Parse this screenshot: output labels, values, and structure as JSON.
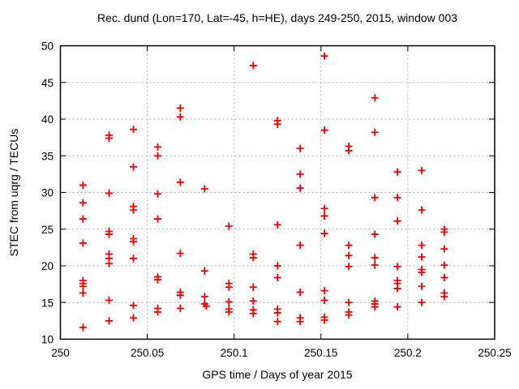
{
  "chart_data": {
    "type": "scatter",
    "title": "Rec. dund (Lon=170, Lat=-45, h=HE), days 249-250, 2015, window 003",
    "xlabel": "GPS time / Days of year 2015",
    "ylabel": "STEC from uqrg / TECUs",
    "xlim": [
      250,
      250.25
    ],
    "ylim": [
      10,
      50
    ],
    "xticks": [
      250,
      250.05,
      250.1,
      250.15,
      250.2,
      250.25
    ],
    "xtick_labels": [
      "250",
      "250.05",
      "250.1",
      "250.15",
      "250.2",
      "250.25"
    ],
    "yticks": [
      10,
      15,
      20,
      25,
      30,
      35,
      40,
      45,
      50
    ],
    "ytick_labels": [
      "10",
      "15",
      "20",
      "25",
      "30",
      "35",
      "40",
      "45",
      "50"
    ],
    "grid": true,
    "legend": "none",
    "marker": {
      "symbol": "plus",
      "color": "#ee0000",
      "size": 9
    },
    "grid_color": "#b0b0b0",
    "axis_color": "#000000",
    "background": "#ffffff",
    "points": [
      [
        250.013,
        31.0
      ],
      [
        250.013,
        28.6
      ],
      [
        250.013,
        26.4
      ],
      [
        250.013,
        23.1
      ],
      [
        250.013,
        18.0
      ],
      [
        250.013,
        17.6
      ],
      [
        250.013,
        17.2
      ],
      [
        250.013,
        16.3
      ],
      [
        250.013,
        11.6
      ],
      [
        250.028,
        37.8
      ],
      [
        250.028,
        37.4
      ],
      [
        250.028,
        29.9
      ],
      [
        250.028,
        24.7
      ],
      [
        250.028,
        24.3
      ],
      [
        250.028,
        21.6
      ],
      [
        250.028,
        21.0
      ],
      [
        250.028,
        20.3
      ],
      [
        250.028,
        15.3
      ],
      [
        250.028,
        12.5
      ],
      [
        250.042,
        38.6
      ],
      [
        250.042,
        33.5
      ],
      [
        250.042,
        28.1
      ],
      [
        250.042,
        27.6
      ],
      [
        250.042,
        23.7
      ],
      [
        250.042,
        23.3
      ],
      [
        250.042,
        21.0
      ],
      [
        250.042,
        14.6
      ],
      [
        250.042,
        12.9
      ],
      [
        250.056,
        36.2
      ],
      [
        250.056,
        35.0
      ],
      [
        250.056,
        29.8
      ],
      [
        250.056,
        26.4
      ],
      [
        250.056,
        18.5
      ],
      [
        250.056,
        18.1
      ],
      [
        250.056,
        14.2
      ],
      [
        250.056,
        13.7
      ],
      [
        250.069,
        41.5
      ],
      [
        250.069,
        40.3
      ],
      [
        250.069,
        31.4
      ],
      [
        250.069,
        21.7
      ],
      [
        250.069,
        16.4
      ],
      [
        250.069,
        16.0
      ],
      [
        250.069,
        14.2
      ],
      [
        250.083,
        30.5
      ],
      [
        250.083,
        19.3
      ],
      [
        250.083,
        15.8
      ],
      [
        250.083,
        14.8
      ],
      [
        250.084,
        14.5
      ],
      [
        250.097,
        25.4
      ],
      [
        250.097,
        17.6
      ],
      [
        250.097,
        17.1
      ],
      [
        250.097,
        15.1
      ],
      [
        250.097,
        14.1
      ],
      [
        250.097,
        13.7
      ],
      [
        250.111,
        47.3
      ],
      [
        250.111,
        21.6
      ],
      [
        250.111,
        21.1
      ],
      [
        250.111,
        17.1
      ],
      [
        250.111,
        15.2
      ],
      [
        250.111,
        14.0
      ],
      [
        250.111,
        13.5
      ],
      [
        250.125,
        39.8
      ],
      [
        250.125,
        39.3
      ],
      [
        250.125,
        25.6
      ],
      [
        250.125,
        20.0
      ],
      [
        250.125,
        18.4
      ],
      [
        250.125,
        14.1
      ],
      [
        250.125,
        13.6
      ],
      [
        250.125,
        12.4
      ],
      [
        250.138,
        36.0
      ],
      [
        250.138,
        32.5
      ],
      [
        250.138,
        30.6
      ],
      [
        250.138,
        22.8
      ],
      [
        250.138,
        16.4
      ],
      [
        250.138,
        12.9
      ],
      [
        250.138,
        12.4
      ],
      [
        250.152,
        48.6
      ],
      [
        250.152,
        38.5
      ],
      [
        250.152,
        27.8
      ],
      [
        250.152,
        26.8
      ],
      [
        250.152,
        24.4
      ],
      [
        250.152,
        16.6
      ],
      [
        250.152,
        15.3
      ],
      [
        250.152,
        13.0
      ],
      [
        250.152,
        12.6
      ],
      [
        250.166,
        36.3
      ],
      [
        250.166,
        35.7
      ],
      [
        250.166,
        22.8
      ],
      [
        250.166,
        21.4
      ],
      [
        250.166,
        19.9
      ],
      [
        250.166,
        15.0
      ],
      [
        250.166,
        13.7
      ],
      [
        250.166,
        13.3
      ],
      [
        250.181,
        42.9
      ],
      [
        250.181,
        38.2
      ],
      [
        250.181,
        29.3
      ],
      [
        250.181,
        24.3
      ],
      [
        250.181,
        21.1
      ],
      [
        250.181,
        20.1
      ],
      [
        250.181,
        15.2
      ],
      [
        250.181,
        14.8
      ],
      [
        250.181,
        14.4
      ],
      [
        250.194,
        32.8
      ],
      [
        250.194,
        29.3
      ],
      [
        250.194,
        26.1
      ],
      [
        250.194,
        19.9
      ],
      [
        250.194,
        18.0
      ],
      [
        250.194,
        17.6
      ],
      [
        250.194,
        16.9
      ],
      [
        250.194,
        14.4
      ],
      [
        250.208,
        33.0
      ],
      [
        250.208,
        27.6
      ],
      [
        250.208,
        22.8
      ],
      [
        250.208,
        21.2
      ],
      [
        250.208,
        19.5
      ],
      [
        250.208,
        19.1
      ],
      [
        250.208,
        17.2
      ],
      [
        250.208,
        15.0
      ],
      [
        250.221,
        25.0
      ],
      [
        250.221,
        24.6
      ],
      [
        250.221,
        22.3
      ],
      [
        250.221,
        20.1
      ],
      [
        250.221,
        18.4
      ],
      [
        250.221,
        16.3
      ],
      [
        250.221,
        15.8
      ]
    ]
  }
}
